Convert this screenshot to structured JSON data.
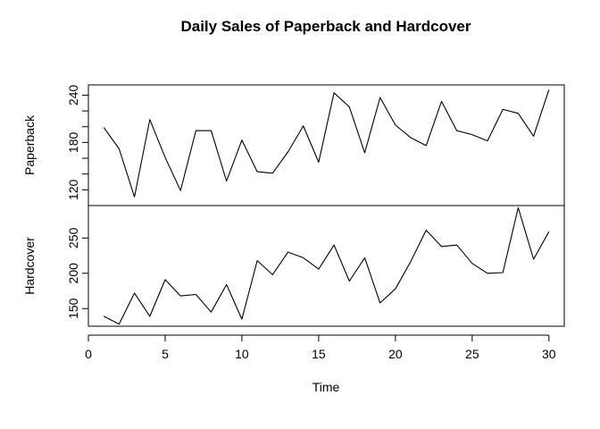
{
  "chart_data": {
    "type": "line",
    "title": "Daily Sales of Paperback and Hardcover",
    "xlabel": "Time",
    "xlim": [
      0,
      31
    ],
    "x_ticks": [
      0,
      5,
      10,
      15,
      20,
      25,
      30
    ],
    "grid": false,
    "x": [
      1,
      2,
      3,
      4,
      5,
      6,
      7,
      8,
      9,
      10,
      11,
      12,
      13,
      14,
      15,
      16,
      17,
      18,
      19,
      20,
      21,
      22,
      23,
      24,
      25,
      26,
      27,
      28,
      29,
      30
    ],
    "series": [
      {
        "name": "Paperback",
        "ylabel": "Paperback",
        "ylim": [
          100,
          253
        ],
        "y_ticks": [
          120,
          140,
          160,
          180,
          200,
          220,
          240
        ],
        "y_tick_labels": [
          "120",
          "",
          "",
          "180",
          "",
          "",
          "240"
        ],
        "values": [
          199,
          172,
          111,
          209,
          161,
          119,
          195,
          195,
          131,
          183,
          143,
          141,
          168,
          201,
          155,
          243,
          225,
          167,
          237,
          202,
          186,
          176,
          232,
          195,
          190,
          182,
          222,
          217,
          188,
          247
        ]
      },
      {
        "name": "Hardcover",
        "ylabel": "Hardcover",
        "ylim": [
          125,
          296
        ],
        "y_ticks": [
          150,
          200,
          250
        ],
        "y_tick_labels": [
          "150",
          "200",
          "250"
        ],
        "values": [
          139,
          128,
          172,
          139,
          191,
          168,
          170,
          145,
          184,
          135,
          218,
          198,
          230,
          222,
          206,
          240,
          189,
          222,
          158,
          178,
          217,
          261,
          238,
          240,
          214,
          200,
          201,
          293,
          220,
          259
        ]
      }
    ]
  }
}
